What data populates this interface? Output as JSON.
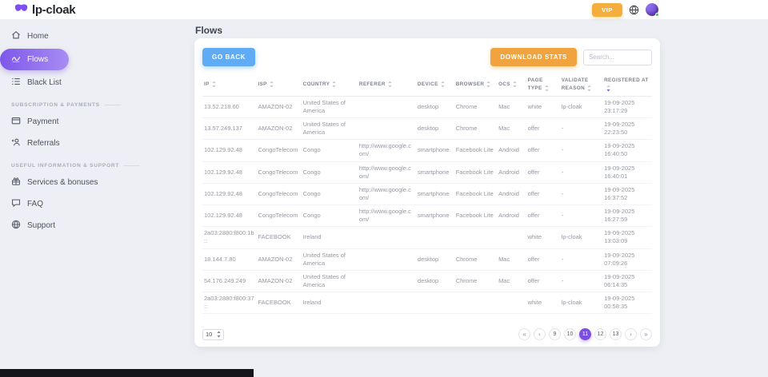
{
  "brand": {
    "name": "lp-cloak"
  },
  "topbar": {
    "vip_label": "VIP"
  },
  "sidebar": {
    "main": [
      {
        "label": "Home"
      },
      {
        "label": "Flows",
        "active": true
      },
      {
        "label": "Black List"
      }
    ],
    "sections": [
      {
        "title": "SUBSCRIPTION & PAYMENTS",
        "items": [
          {
            "label": "Payment"
          },
          {
            "label": "Referrals"
          }
        ]
      },
      {
        "title": "USEFUL INFORMATION & SUPPORT",
        "items": [
          {
            "label": "Services & bonuses"
          },
          {
            "label": "FAQ"
          },
          {
            "label": "Support"
          }
        ]
      }
    ]
  },
  "page": {
    "title": "Flows"
  },
  "toolbar": {
    "go_back_label": "GO BACK",
    "download_label": "DOWNLOAD STATS",
    "search_placeholder": "Search...",
    "search_value": ""
  },
  "table": {
    "columns": [
      {
        "label": "IP",
        "sorted": "none"
      },
      {
        "label": "ISP",
        "sorted": "none"
      },
      {
        "label": "COUNTRY",
        "sorted": "none"
      },
      {
        "label": "REFERER",
        "sorted": "none"
      },
      {
        "label": "DEVICE",
        "sorted": "none"
      },
      {
        "label": "BROWSER",
        "sorted": "none"
      },
      {
        "label": "OCS",
        "sorted": "none"
      },
      {
        "label": "PAGE TYPE",
        "sorted": "none"
      },
      {
        "label": "VALIDATE REASON",
        "sorted": "none"
      },
      {
        "label": "REGISTERED AT",
        "sorted": "desc"
      }
    ],
    "rows": [
      {
        "ip": "13.52.218.60",
        "isp": "AMAZON-02",
        "country": "United States of America",
        "referer": "",
        "device": "desktop",
        "browser": "Chrome",
        "ocs": "Mac",
        "page_type": "white",
        "validate_reason": "lp-cloak",
        "registered_at": "19-09-2025 23:17:29"
      },
      {
        "ip": "13.57.249.137",
        "isp": "AMAZON-02",
        "country": "United States of America",
        "referer": "",
        "device": "desktop",
        "browser": "Chrome",
        "ocs": "Mac",
        "page_type": "offer",
        "validate_reason": "-",
        "registered_at": "19-09-2025 22:23:50"
      },
      {
        "ip": "102.129.92.48",
        "isp": "CongoTelecom",
        "country": "Congo",
        "referer": "http://www.google.com/",
        "device": "smartphone",
        "browser": "Facebook Lite",
        "ocs": "Android",
        "page_type": "offer",
        "validate_reason": "-",
        "registered_at": "19-09-2025 16:40:50"
      },
      {
        "ip": "102.129.92.48",
        "isp": "CongoTelecom",
        "country": "Congo",
        "referer": "http://www.google.com/",
        "device": "smartphone",
        "browser": "Facebook Lite",
        "ocs": "Android",
        "page_type": "offer",
        "validate_reason": "-",
        "registered_at": "19-09-2025 16:40:01"
      },
      {
        "ip": "102.129.92.48",
        "isp": "CongoTelecom",
        "country": "Congo",
        "referer": "http://www.google.com/",
        "device": "smartphone",
        "browser": "Facebook Lite",
        "ocs": "Android",
        "page_type": "offer",
        "validate_reason": "-",
        "registered_at": "19-09-2025 16:37:52"
      },
      {
        "ip": "102.129.92.48",
        "isp": "CongoTelecom",
        "country": "Congo",
        "referer": "http://www.google.com/",
        "device": "smartphone",
        "browser": "Facebook Lite",
        "ocs": "Android",
        "page_type": "offer",
        "validate_reason": "-",
        "registered_at": "19-09-2025 16:27:59"
      },
      {
        "ip": "2a03:2880:f800:1b::",
        "isp": "FACEBOOK",
        "country": "Ireland",
        "referer": "",
        "device": "",
        "browser": "",
        "ocs": "",
        "page_type": "white",
        "validate_reason": "lp-cloak",
        "registered_at": "19-09-2025 13:03:09"
      },
      {
        "ip": "18.144.7.80",
        "isp": "AMAZON-02",
        "country": "United States of America",
        "referer": "",
        "device": "desktop",
        "browser": "Chrome",
        "ocs": "Mac",
        "page_type": "offer",
        "validate_reason": "-",
        "registered_at": "19-09-2025 07:09:26"
      },
      {
        "ip": "54.176.249.249",
        "isp": "AMAZON-02",
        "country": "United States of America",
        "referer": "",
        "device": "desktop",
        "browser": "Chrome",
        "ocs": "Mac",
        "page_type": "offer",
        "validate_reason": "-",
        "registered_at": "19-09-2025 06:14:35"
      },
      {
        "ip": "2a03:2880:f800:37::",
        "isp": "FACEBOOK",
        "country": "Ireland",
        "referer": "",
        "device": "",
        "browser": "",
        "ocs": "",
        "page_type": "white",
        "validate_reason": "lp-cloak",
        "registered_at": "19-09-2025 00:58:35"
      }
    ]
  },
  "footer": {
    "page_size": "10",
    "pagination": [
      {
        "label": "«",
        "kind": "first"
      },
      {
        "label": "‹",
        "kind": "prev"
      },
      {
        "label": "9",
        "kind": "page"
      },
      {
        "label": "10",
        "kind": "page"
      },
      {
        "label": "11",
        "kind": "page",
        "active": true
      },
      {
        "label": "12",
        "kind": "page"
      },
      {
        "label": "13",
        "kind": "page"
      },
      {
        "label": "›",
        "kind": "next"
      },
      {
        "label": "»",
        "kind": "last"
      }
    ]
  },
  "colors": {
    "accent_purple": "#7a4fe0",
    "sidebar_gradient_start": "#7e57ea",
    "sidebar_gradient_end": "#a88df3",
    "orange": "#f0a33f",
    "blue": "#5facf5",
    "sort_active": "#5f6bdd",
    "online_green": "#41c54c"
  }
}
